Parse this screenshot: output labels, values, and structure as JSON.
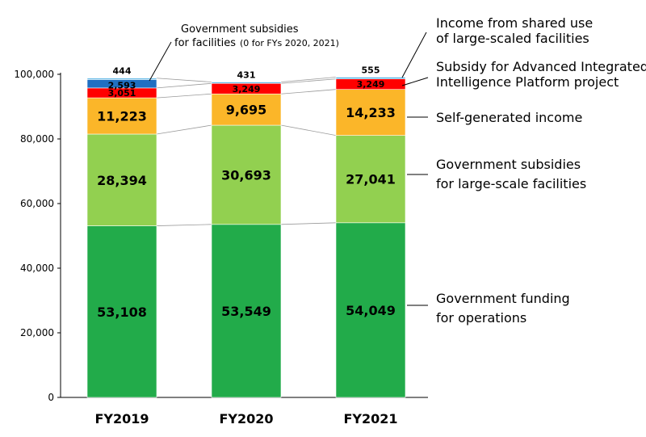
{
  "chart_data": {
    "type": "bar",
    "stacked": true,
    "categories": [
      "FY2019",
      "FY2020",
      "FY2021"
    ],
    "ylim": [
      0,
      100000
    ],
    "yticks": [
      0,
      20000,
      40000,
      60000,
      80000,
      100000
    ],
    "ytick_labels": [
      "0",
      "20,000",
      "40,000",
      "60,000",
      "80,000",
      "100,000"
    ],
    "grid": false,
    "series": [
      {
        "name_lines": [
          "Government funding",
          "for operations"
        ],
        "color": "#22ab4a",
        "values": [
          53108,
          53549,
          54049
        ],
        "value_labels": [
          "53,108",
          "53,549",
          "54,049"
        ]
      },
      {
        "name_lines": [
          "Government subsidies",
          "for large-scale facilities"
        ],
        "color": "#92d050",
        "values": [
          28394,
          30693,
          27041
        ],
        "value_labels": [
          "28,394",
          "30,693",
          "27,041"
        ]
      },
      {
        "name_lines": [
          "Self-generated income"
        ],
        "color": "#fbb629",
        "values": [
          11223,
          9695,
          14233
        ],
        "value_labels": [
          "11,223",
          "9,695",
          "14,233"
        ]
      },
      {
        "name_lines": [
          "Subsidy for Advanced Integrated",
          "Intelligence Platform project"
        ],
        "color": "#ff0000",
        "values": [
          3051,
          3249,
          3249
        ],
        "value_labels": [
          "3,051",
          "3,249",
          "3,249"
        ]
      },
      {
        "name_lines": [
          "Government subsidies",
          "for facilities"
        ],
        "name_note": "(0 for FYs 2020, 2021)",
        "color": "#1f6fc2",
        "values": [
          2593,
          0,
          0
        ],
        "value_labels": [
          "2,593",
          "",
          ""
        ]
      },
      {
        "name_lines": [
          "Income from shared use",
          "of large-scaled facilities"
        ],
        "color": "#5eb7e6",
        "values": [
          444,
          431,
          555
        ],
        "value_labels": [
          "444",
          "431",
          "555"
        ]
      }
    ]
  }
}
